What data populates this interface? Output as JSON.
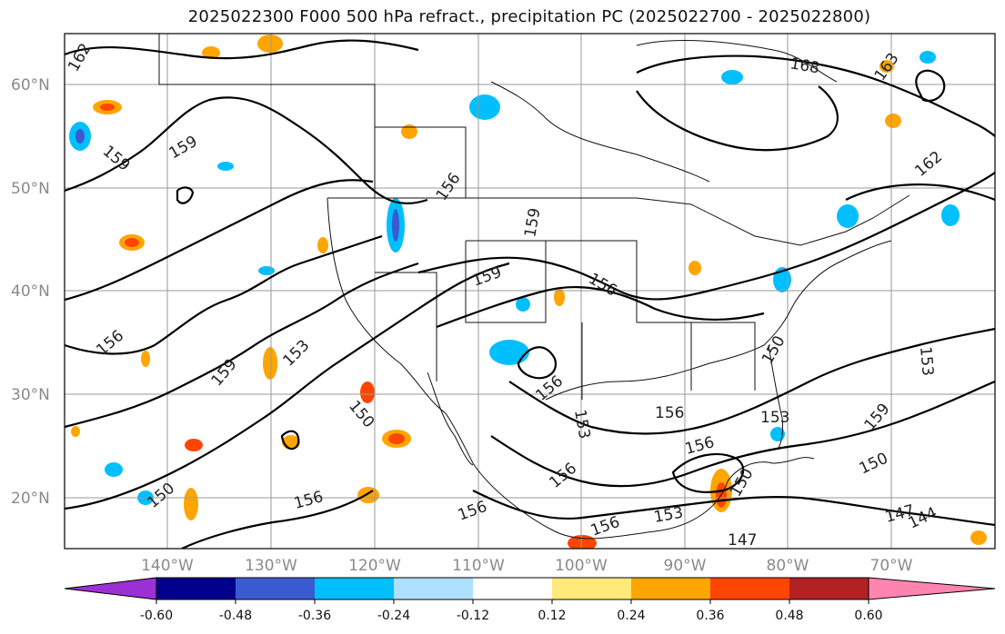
{
  "title": "2025022300 F000 500 hPa refract., precipitation PC (2025022700 - 2025022800)",
  "map": {
    "lat_labels": [
      "60°N",
      "50°N",
      "40°N",
      "30°N",
      "20°N"
    ],
    "lon_labels": [
      "140°W",
      "130°W",
      "120°W",
      "110°W",
      "100°W",
      "90°W",
      "80°W",
      "70°W"
    ],
    "contour_labels": [
      "162",
      "159",
      "159",
      "156",
      "159",
      "159",
      "156",
      "156",
      "153",
      "159",
      "150",
      "156",
      "156",
      "153",
      "156",
      "153",
      "159",
      "156",
      "150",
      "150",
      "156",
      "156",
      "153",
      "147",
      "156",
      "147",
      "144",
      "153",
      "162",
      "168",
      "163",
      "150",
      "150"
    ]
  },
  "colorbar": {
    "tick_labels": [
      "-0.60",
      "-0.48",
      "-0.36",
      "-0.24",
      "-0.12",
      "0.12",
      "0.24",
      "0.36",
      "0.48",
      "0.60"
    ],
    "colors": [
      "#9b30d4",
      "#00008b",
      "#3a5bd0",
      "#00bfff",
      "#aee0ff",
      "#ffffff",
      "#ffe97a",
      "#ffa500",
      "#ff4500",
      "#b22222",
      "#ff85b0"
    ]
  }
}
